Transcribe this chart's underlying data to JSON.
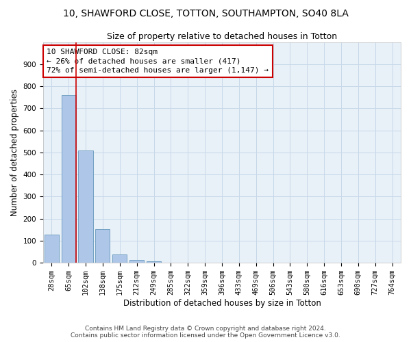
{
  "title": "10, SHAWFORD CLOSE, TOTTON, SOUTHAMPTON, SO40 8LA",
  "subtitle": "Size of property relative to detached houses in Totton",
  "xlabel": "Distribution of detached houses by size in Totton",
  "ylabel": "Number of detached properties",
  "categories": [
    "28sqm",
    "65sqm",
    "102sqm",
    "138sqm",
    "175sqm",
    "212sqm",
    "249sqm",
    "285sqm",
    "322sqm",
    "359sqm",
    "396sqm",
    "433sqm",
    "469sqm",
    "506sqm",
    "543sqm",
    "580sqm",
    "616sqm",
    "653sqm",
    "690sqm",
    "727sqm",
    "764sqm"
  ],
  "values": [
    128,
    760,
    510,
    152,
    38,
    12,
    8,
    0,
    0,
    0,
    0,
    0,
    0,
    0,
    0,
    0,
    0,
    0,
    0,
    0,
    0
  ],
  "bar_color": "#aec6e8",
  "bar_edge_color": "#6699bb",
  "grid_color": "#c8d8e8",
  "background_color": "#e8f0f8",
  "vline_color": "#cc0000",
  "annotation_text": "10 SHAWFORD CLOSE: 82sqm\n← 26% of detached houses are smaller (417)\n72% of semi-detached houses are larger (1,147) →",
  "annotation_box_color": "#ffffff",
  "annotation_box_edge": "#cc0000",
  "ylim": [
    0,
    1000
  ],
  "yticks": [
    0,
    100,
    200,
    300,
    400,
    500,
    600,
    700,
    800,
    900,
    1000
  ],
  "footer": "Contains HM Land Registry data © Crown copyright and database right 2024.\nContains public sector information licensed under the Open Government Licence v3.0.",
  "title_fontsize": 10,
  "subtitle_fontsize": 9,
  "axis_label_fontsize": 8.5,
  "tick_fontsize": 7.5,
  "annotation_fontsize": 8,
  "footer_fontsize": 6.5
}
